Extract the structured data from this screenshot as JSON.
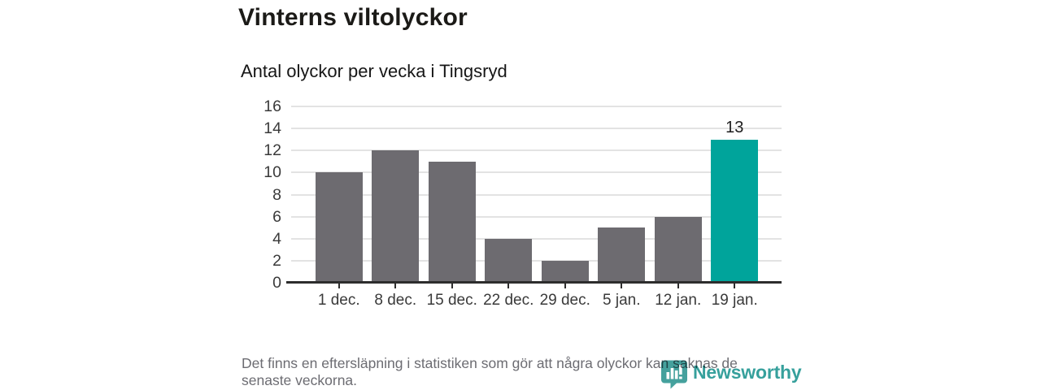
{
  "chart_data": {
    "type": "bar",
    "title": "Vinterns viltolyckor",
    "subtitle": "Antal olyckor per vecka i Tingsryd",
    "categories": [
      "1 dec.",
      "8 dec.",
      "15 dec.",
      "22 dec.",
      "29 dec.",
      "5 jan.",
      "12 jan.",
      "19 jan."
    ],
    "values": [
      10,
      12,
      11,
      4,
      2,
      5,
      6,
      13
    ],
    "xlabel": "",
    "ylabel": "",
    "ylim": [
      0,
      16
    ],
    "yticks": [
      0,
      2,
      4,
      6,
      8,
      10,
      12,
      14,
      16
    ],
    "grid": true,
    "legend_position": "none",
    "highlighted_index": 7,
    "data_label": {
      "index": 7,
      "text": "13"
    },
    "colors": {
      "bar": "#6d6b70",
      "highlight": "#00a49b",
      "grid": "#e3e3e3",
      "axis": "#2d2d2d",
      "tick_text": "#3a3a3a"
    }
  },
  "footer": {
    "note_lines": [
      "Det finns en eftersläpning i statistiken som gör att några olyckor kan saknas de",
      "senaste veckorna."
    ],
    "brand": "Newsworthy",
    "brand_color": "#36a09c"
  }
}
